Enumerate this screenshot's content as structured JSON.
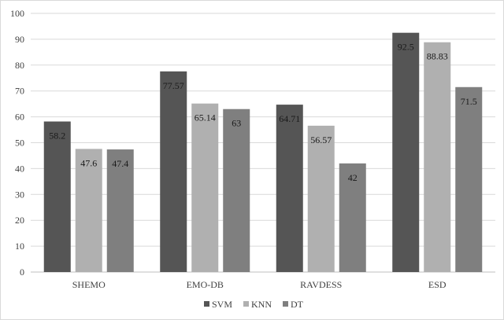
{
  "chart_data": {
    "type": "bar",
    "title": "",
    "xlabel": "",
    "ylabel": "",
    "categories": [
      "SHEMO",
      "EMO-DB",
      "RAVDESS",
      "ESD"
    ],
    "series": [
      {
        "name": "SVM",
        "values": [
          58.2,
          77.57,
          64.71,
          92.5
        ],
        "color": "#555555"
      },
      {
        "name": "KNN",
        "values": [
          47.6,
          65.14,
          56.57,
          88.83
        ],
        "color": "#b0b0b0"
      },
      {
        "name": "DT",
        "values": [
          47.4,
          63,
          42,
          71.5
        ],
        "color": "#7f7f7f"
      }
    ],
    "data_labels": [
      [
        "58.2",
        "77.57",
        "64.71",
        "92.5"
      ],
      [
        "47.6",
        "65.14",
        "56.57",
        "88.83"
      ],
      [
        "47.4",
        "63",
        "42",
        "71.5"
      ]
    ],
    "ylim": [
      0,
      100
    ],
    "yticks": [
      0,
      10,
      20,
      30,
      40,
      50,
      60,
      70,
      80,
      90,
      100
    ],
    "grid": true,
    "legend": "bottom-center"
  }
}
